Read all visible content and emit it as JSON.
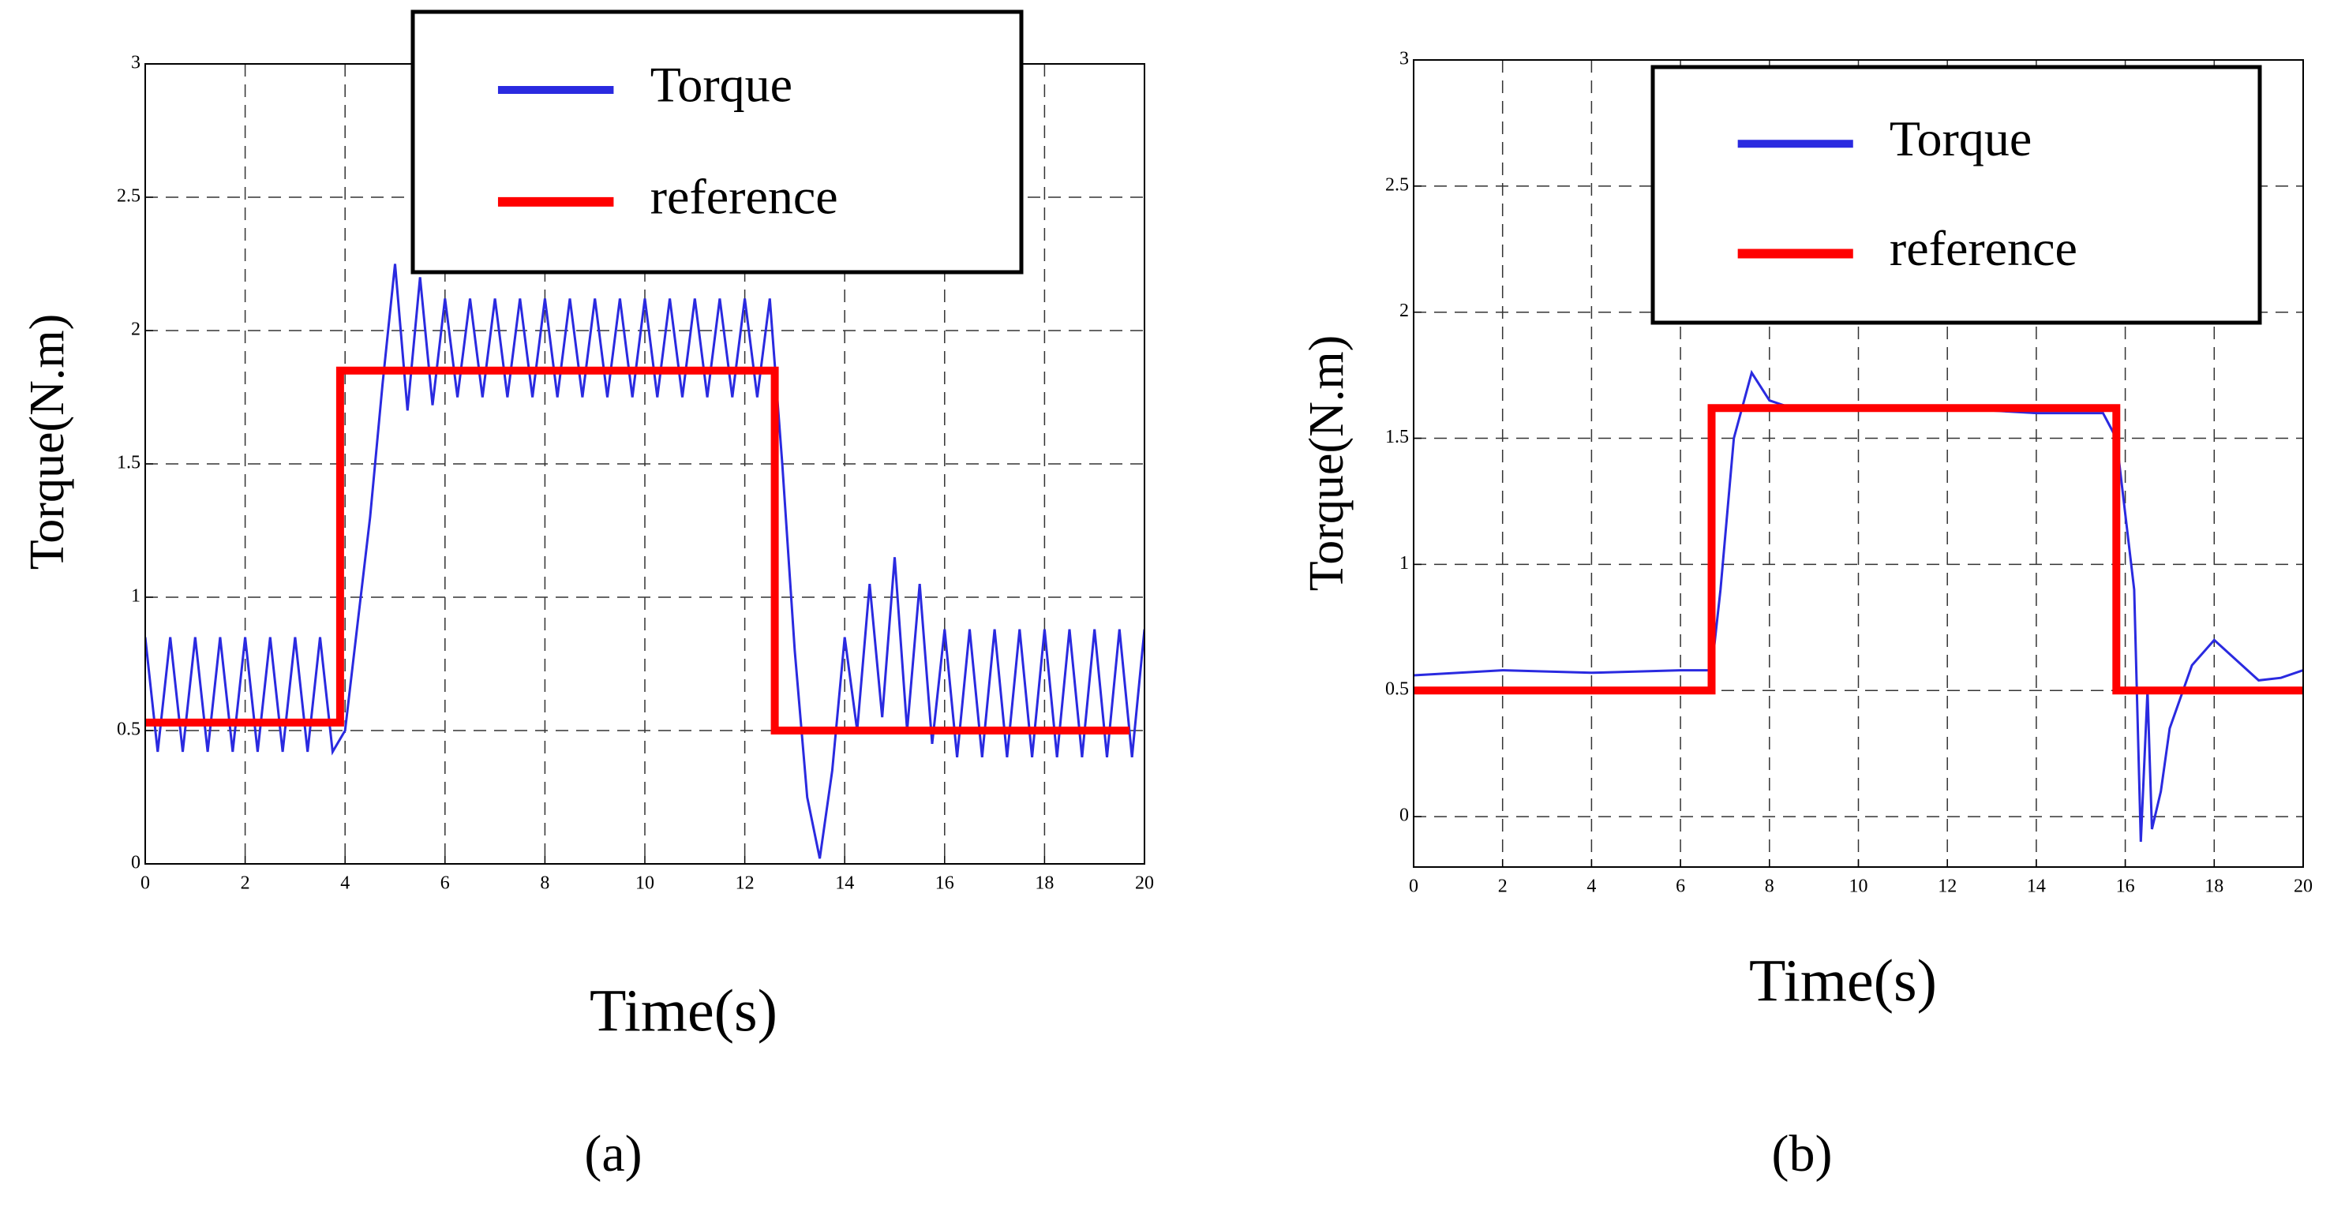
{
  "chart_data": [
    {
      "type": "line",
      "caption": "(a)",
      "xlabel": "Time(s)",
      "ylabel": "Torque(N.m)",
      "xlim": [
        0,
        20
      ],
      "xticks": [
        0,
        2,
        4,
        6,
        8,
        10,
        12,
        14,
        16,
        18,
        20
      ],
      "ylim": [
        0,
        3
      ],
      "yticks": [
        0,
        0.5,
        1,
        1.5,
        2,
        2.5,
        3
      ],
      "grid": true,
      "series": [
        {
          "name": "Torque",
          "color": "#2a2ae0",
          "x": [
            0,
            0.25,
            0.5,
            0.75,
            1,
            1.25,
            1.5,
            1.75,
            2,
            2.25,
            2.5,
            2.75,
            3,
            3.25,
            3.5,
            3.75,
            4,
            4.25,
            4.5,
            4.75,
            5,
            5.25,
            5.5,
            5.75,
            6,
            6.25,
            6.5,
            6.75,
            7,
            7.25,
            7.5,
            7.75,
            8,
            8.25,
            8.5,
            8.75,
            9,
            9.25,
            9.5,
            9.75,
            10,
            10.25,
            10.5,
            10.75,
            11,
            11.25,
            11.5,
            11.75,
            12,
            12.25,
            12.5,
            12.75,
            13,
            13.25,
            13.5,
            13.75,
            14,
            14.25,
            14.5,
            14.75,
            15,
            15.25,
            15.5,
            15.75,
            16,
            16.25,
            16.5,
            16.75,
            17,
            17.25,
            17.5,
            17.75,
            18,
            18.25,
            18.5,
            18.75,
            19,
            19.25,
            19.5,
            19.75,
            20
          ],
          "values": [
            0.85,
            0.42,
            0.85,
            0.42,
            0.85,
            0.42,
            0.85,
            0.42,
            0.85,
            0.42,
            0.85,
            0.42,
            0.85,
            0.42,
            0.85,
            0.42,
            0.5,
            0.9,
            1.3,
            1.8,
            2.25,
            1.7,
            2.2,
            1.72,
            2.12,
            1.75,
            2.12,
            1.75,
            2.12,
            1.75,
            2.12,
            1.75,
            2.12,
            1.75,
            2.12,
            1.75,
            2.12,
            1.75,
            2.12,
            1.75,
            2.12,
            1.75,
            2.12,
            1.75,
            2.12,
            1.75,
            2.12,
            1.75,
            2.12,
            1.75,
            2.12,
            1.5,
            0.8,
            0.25,
            0.02,
            0.35,
            0.85,
            0.5,
            1.05,
            0.55,
            1.15,
            0.5,
            1.05,
            0.45,
            0.88,
            0.4,
            0.88,
            0.4,
            0.88,
            0.4,
            0.88,
            0.4,
            0.88,
            0.4,
            0.88,
            0.4,
            0.88,
            0.4,
            0.88,
            0.4,
            0.88
          ]
        },
        {
          "name": "reference",
          "color": "#ff0000",
          "x": [
            0,
            3.9,
            3.9,
            12.6,
            12.6,
            19.7
          ],
          "values": [
            0.53,
            0.53,
            1.85,
            1.85,
            0.5,
            0.5
          ]
        }
      ]
    },
    {
      "type": "line",
      "caption": "(b)",
      "xlabel": "Time(s)",
      "ylabel": "Torque(N.m)",
      "xlim": [
        0,
        20
      ],
      "xticks": [
        0,
        2,
        4,
        6,
        8,
        10,
        12,
        14,
        16,
        18,
        20
      ],
      "ylim": [
        -0.2,
        3
      ],
      "yticks": [
        0,
        0.5,
        1,
        1.5,
        2,
        2.5,
        3
      ],
      "grid": true,
      "series": [
        {
          "name": "Torque",
          "color": "#2a2ae0",
          "x": [
            0,
            2,
            4,
            6,
            6.7,
            6.9,
            7.2,
            7.6,
            8,
            8.5,
            9,
            11,
            13,
            14,
            15.5,
            15.8,
            16,
            16.2,
            16.35,
            16.5,
            16.6,
            16.8,
            17,
            17.5,
            18,
            18.5,
            19,
            19.5,
            20
          ],
          "values": [
            0.56,
            0.58,
            0.57,
            0.58,
            0.58,
            0.9,
            1.5,
            1.76,
            1.65,
            1.62,
            1.61,
            1.62,
            1.61,
            1.6,
            1.6,
            1.5,
            1.2,
            0.9,
            -0.1,
            0.5,
            -0.05,
            0.1,
            0.35,
            0.6,
            0.7,
            0.62,
            0.54,
            0.55,
            0.58
          ]
        },
        {
          "name": "reference",
          "color": "#ff0000",
          "x": [
            0,
            6.7,
            6.7,
            15.8,
            15.8,
            20
          ],
          "values": [
            0.5,
            0.5,
            1.62,
            1.62,
            0.5,
            0.5
          ]
        }
      ]
    }
  ]
}
